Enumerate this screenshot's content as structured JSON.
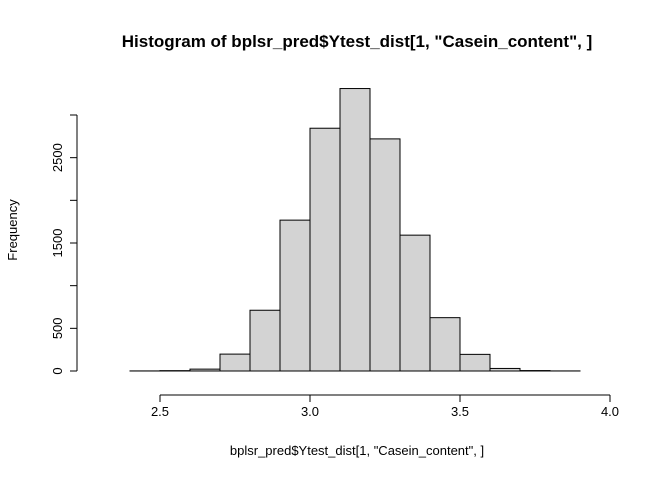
{
  "chart_data": {
    "type": "bar",
    "title": "Histogram of bplsr_pred$Ytest_dist[1, \"Casein_content\", ]",
    "xlabel": "bplsr_pred$Ytest_dist[1, \"Casein_content\", ]",
    "ylabel": "Frequency",
    "bar_color": "#d3d3d3",
    "bins": [
      {
        "start": 2.3,
        "end": 2.4,
        "count": 0
      },
      {
        "start": 2.4,
        "end": 2.5,
        "count": 1
      },
      {
        "start": 2.5,
        "end": 2.6,
        "count": 4
      },
      {
        "start": 2.6,
        "end": 2.7,
        "count": 22
      },
      {
        "start": 2.7,
        "end": 2.8,
        "count": 198
      },
      {
        "start": 2.8,
        "end": 2.9,
        "count": 712
      },
      {
        "start": 2.9,
        "end": 3.0,
        "count": 1768
      },
      {
        "start": 3.0,
        "end": 3.1,
        "count": 2845
      },
      {
        "start": 3.1,
        "end": 3.2,
        "count": 3310
      },
      {
        "start": 3.2,
        "end": 3.3,
        "count": 2720
      },
      {
        "start": 3.3,
        "end": 3.4,
        "count": 1592
      },
      {
        "start": 3.4,
        "end": 3.5,
        "count": 625
      },
      {
        "start": 3.5,
        "end": 3.6,
        "count": 195
      },
      {
        "start": 3.6,
        "end": 3.7,
        "count": 30
      },
      {
        "start": 3.7,
        "end": 3.8,
        "count": 5
      },
      {
        "start": 3.8,
        "end": 3.9,
        "count": 1
      },
      {
        "start": 3.9,
        "end": 4.0,
        "count": 0
      }
    ],
    "xlim": [
      2.3,
      4.0
    ],
    "ylim": [
      0,
      3300
    ],
    "x_ticks": [
      "2.5",
      "3.0",
      "3.5",
      "4.0"
    ],
    "y_ticks": [
      "0",
      "500",
      "1500",
      "2500"
    ]
  }
}
